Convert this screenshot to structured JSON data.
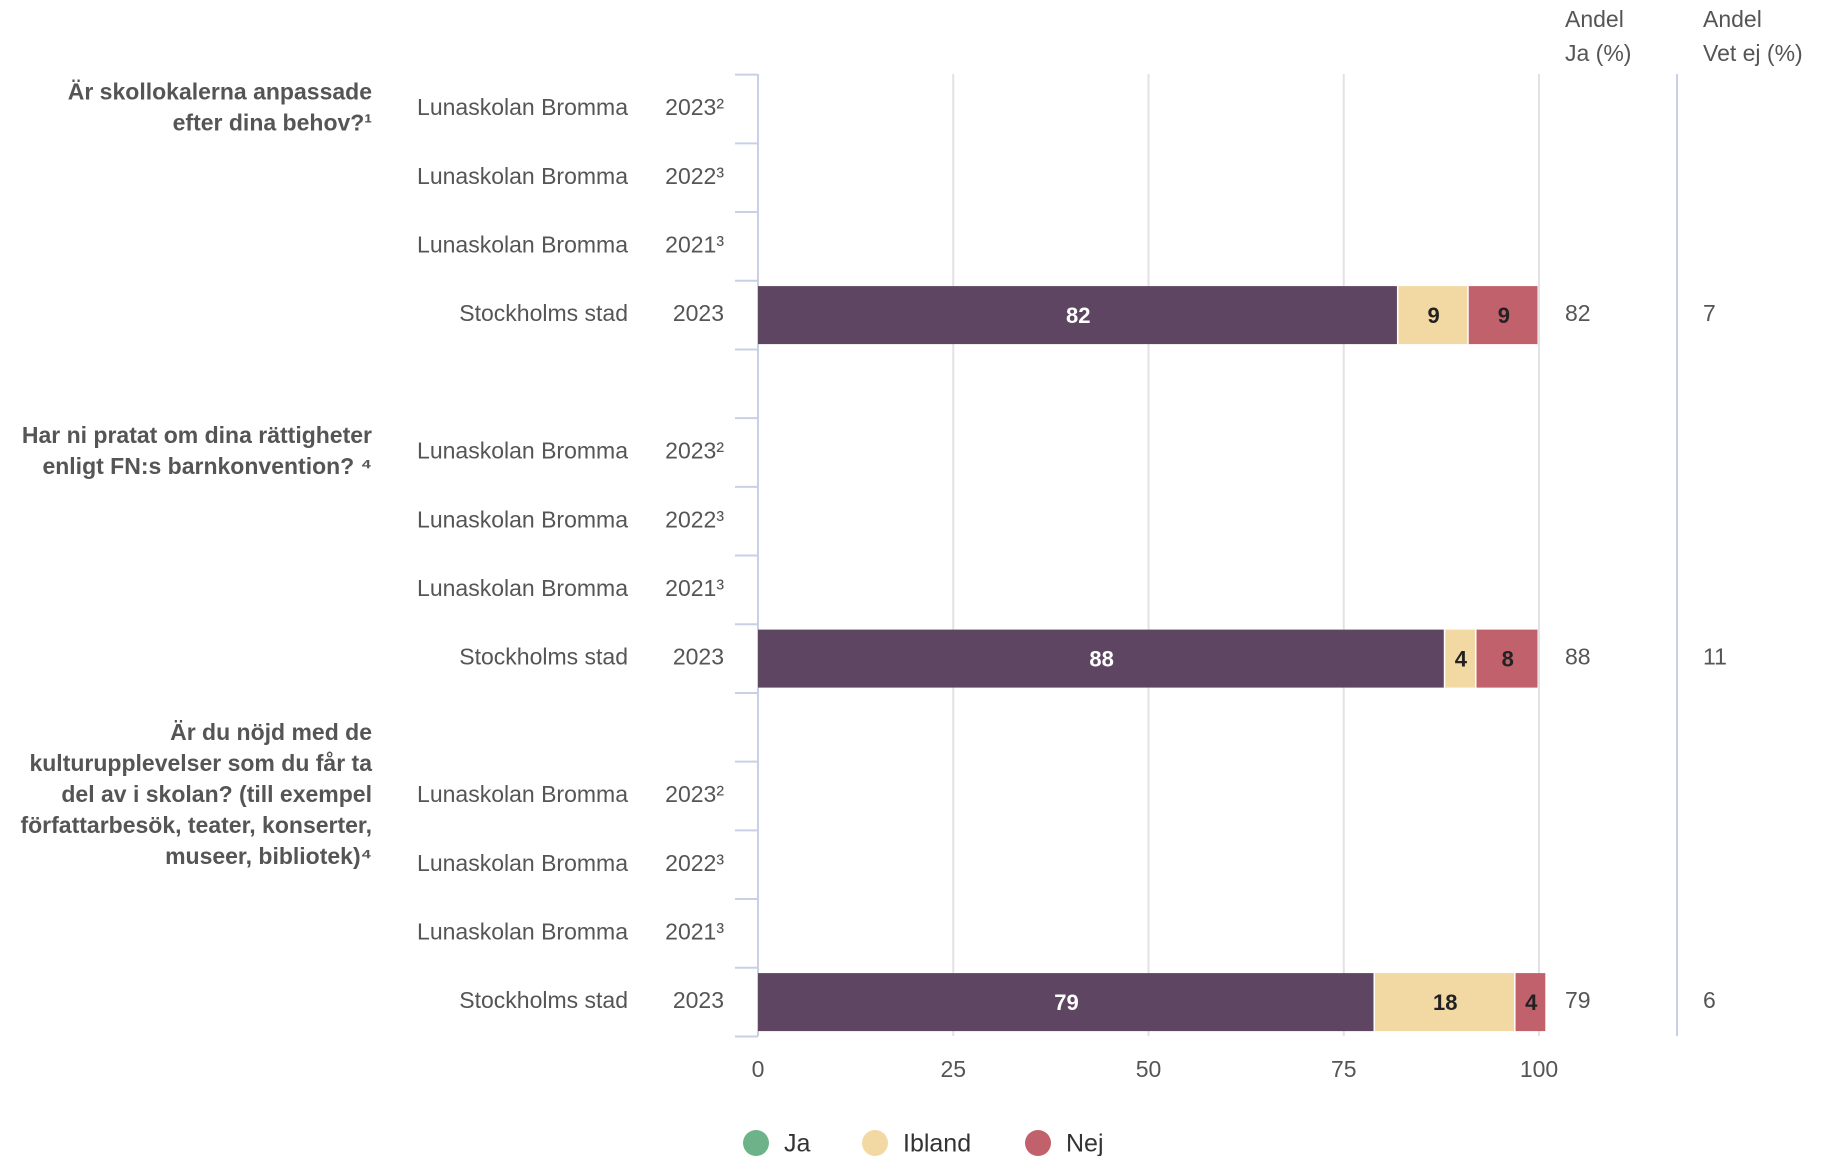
{
  "chart_data": {
    "type": "bar",
    "orientation": "horizontal",
    "stacked": true,
    "groups": [
      {
        "question": [
          "Är skollokalerna anpassade",
          "efter dina behov?¹"
        ]
      },
      {
        "question": [
          "Har ni pratat om dina rättigheter",
          "enligt FN:s barnkonvention? ⁴"
        ]
      },
      {
        "question": [
          "Är du nöjd med de",
          "kulturupplevelser som du får ta",
          "del av i skolan? (till exempel",
          "författarbesök, teater, konserter,",
          "museer, bibliotek)⁴"
        ]
      }
    ],
    "categories": [
      "Lunaskolan Bromma",
      "Lunaskolan Bromma",
      "Lunaskolan Bromma",
      "Stockholms stad",
      "Lunaskolan Bromma",
      "Lunaskolan Bromma",
      "Lunaskolan Bromma",
      "Stockholms stad",
      "Lunaskolan Bromma",
      "Lunaskolan Bromma",
      "Lunaskolan Bromma",
      "Stockholms stad"
    ],
    "years": [
      "2023²",
      "2022³",
      "2021³",
      "2023",
      "2023²",
      "2022³",
      "2021³",
      "2023",
      "2023²",
      "2022³",
      "2021³",
      "2023"
    ],
    "series": [
      {
        "name": "Ja",
        "color": "#5e4561",
        "legend_color": "#6db38a",
        "label_color": "#ffffff",
        "values": [
          null,
          null,
          null,
          82,
          null,
          null,
          null,
          88,
          null,
          null,
          null,
          79
        ]
      },
      {
        "name": "Ibland",
        "color": "#f2d9a3",
        "legend_color": "#f2d9a3",
        "label_color": "#222222",
        "values": [
          null,
          null,
          null,
          9,
          null,
          null,
          null,
          4,
          null,
          null,
          null,
          18
        ]
      },
      {
        "name": "Nej",
        "color": "#c0616c",
        "legend_color": "#c0616c",
        "label_color": "#222222",
        "values": [
          null,
          null,
          null,
          9,
          null,
          null,
          null,
          8,
          null,
          null,
          null,
          4
        ]
      }
    ],
    "columns": [
      {
        "title": [
          "Andel",
          "Ja (%)"
        ],
        "values": [
          null,
          null,
          null,
          82,
          null,
          null,
          null,
          88,
          null,
          null,
          null,
          79
        ]
      },
      {
        "title": [
          "Andel",
          "Vet ej (%)"
        ],
        "values": [
          null,
          null,
          null,
          7,
          null,
          null,
          null,
          11,
          null,
          null,
          null,
          6
        ]
      }
    ],
    "xlim": [
      0,
      100
    ],
    "xticks": [
      0,
      25,
      50,
      75,
      100
    ],
    "grid": true,
    "legend": "bottom"
  }
}
